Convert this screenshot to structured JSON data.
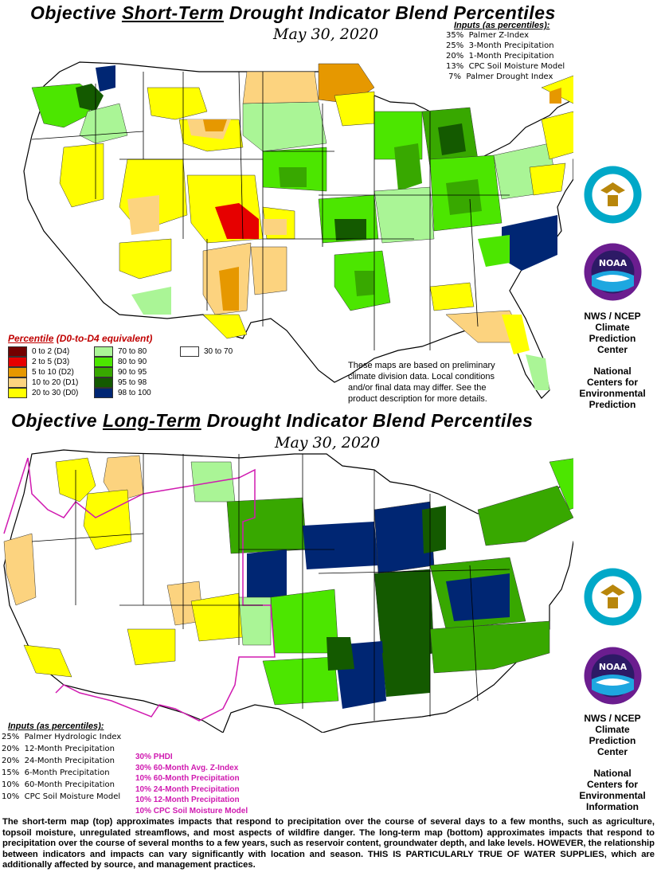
{
  "top": {
    "title_pre": "Objective ",
    "title_emph": "Short-Term",
    "title_post": " Drought Indicator Blend Percentiles",
    "date": "May 30, 2020",
    "inputs_header": "Inputs (as percentiles):",
    "inputs": [
      "35%  Palmer Z-Index",
      "25%  3-Month Precipitation",
      "20%  1-Month Precipitation",
      "13%  CPC Soil Moisture Model",
      " 7%  Palmer Drought Index"
    ],
    "note": "These maps are based on preliminary climate division data. Local conditions and/or final data may differ. See the product description for more details.",
    "agency_1": "NWS / NCEP",
    "agency_2": "Climate",
    "agency_3": "Prediction",
    "agency_4": "Center",
    "agency_5": "National",
    "agency_6": "Centers for",
    "agency_7": "Environmental",
    "agency_8": "Prediction"
  },
  "legend": {
    "title_pre": "Percentile",
    "title_post": "  (D0-to-D4 equivalent)",
    "items": [
      {
        "label": "0 to 2  (D4)",
        "color": "#730000"
      },
      {
        "label": "2 to 5  (D3)",
        "color": "#e60000"
      },
      {
        "label": "5 to 10  (D2)",
        "color": "#e69800"
      },
      {
        "label": "10 to 20  (D1)",
        "color": "#fcd37f"
      },
      {
        "label": "20 to 30  (D0)",
        "color": "#ffff00"
      },
      {
        "label": "70 to 80",
        "color": "#aaf596"
      },
      {
        "label": "80 to 90",
        "color": "#4ce600"
      },
      {
        "label": "90 to 95",
        "color": "#38a800"
      },
      {
        "label": "95 to 98",
        "color": "#145a00"
      },
      {
        "label": "98 to 100",
        "color": "#002673"
      },
      {
        "label": "30 to 70",
        "color": "#ffffff"
      }
    ]
  },
  "bottom": {
    "title_pre": "Objective ",
    "title_emph": "Long-Term",
    "title_post": " Drought Indicator Blend Percentiles",
    "date": "May 30, 2020",
    "inputs_header": "Inputs (as percentiles):",
    "inputs": [
      "25%  Palmer Hydrologic Index",
      "20%  12-Month Precipitation",
      "20%  24-Month Precipitation",
      "15%  6-Month Precipitation",
      "10%  60-Month Precipitation",
      "10%  CPC Soil Moisture Model"
    ],
    "west_inputs": [
      "30% PHDI",
      "30% 60-Month Avg. Z-Index",
      "10% 60-Month Precipitation",
      "10% 24-Month Precipitation",
      "10% 12-Month Precipitation",
      "10% CPC Soil Moisture Model"
    ],
    "agency_1": "NWS / NCEP",
    "agency_2": "Climate",
    "agency_3": "Prediction",
    "agency_4": "Center",
    "agency_5": "National",
    "agency_6": "Centers for",
    "agency_7": "Environmental",
    "agency_8": "Information"
  },
  "footer": "The short-term map (top) approximates impacts that respond to precipitation over the course of several days to a few months, such as agriculture, topsoil moisture, unregulated streamflows, and most aspects of wildfire danger. The long-term map (bottom) approximates impacts that respond to precipitation over the course of several months to a few years, such as reservoir content, groundwater depth, and lake levels. HOWEVER, the relationship between indicators and impacts can vary significantly with location and season. THIS IS PARTICULARLY TRUE OF WATER SUPPLIES, which are additionally affected by source, and management practices.",
  "icons": {
    "commerce_seal": "commerce-seal-icon",
    "noaa_logo": "noaa-logo-icon"
  }
}
